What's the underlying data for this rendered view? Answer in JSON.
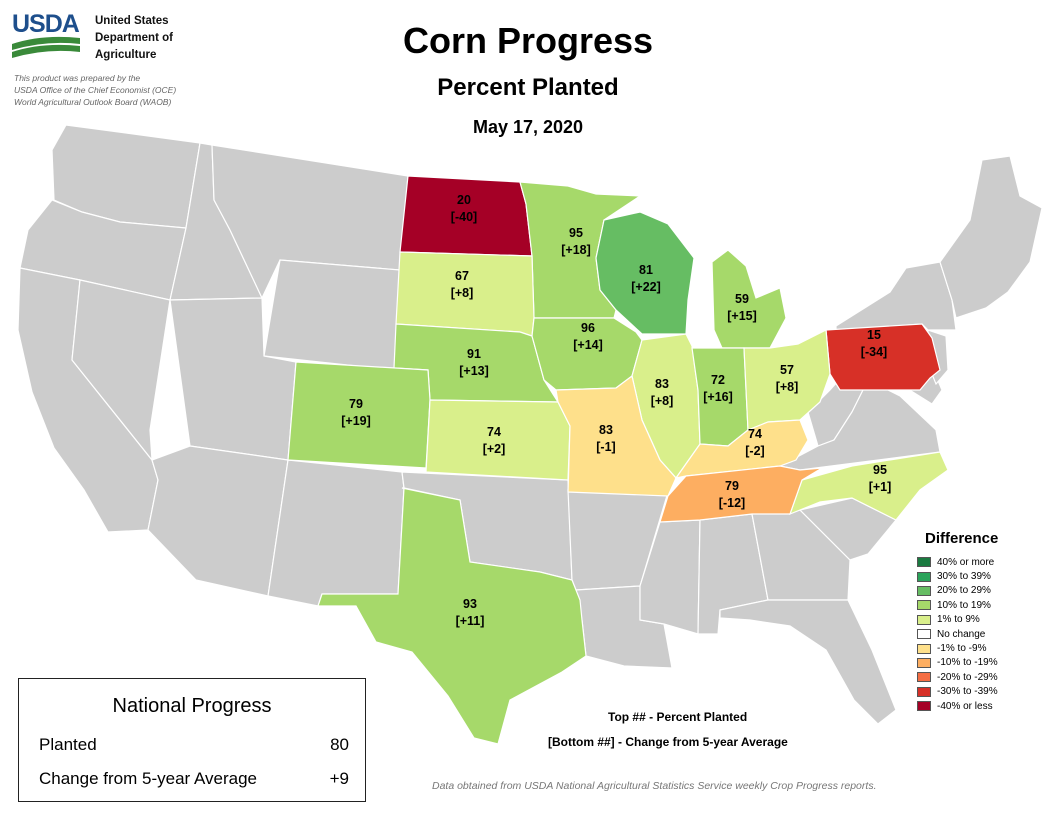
{
  "header": {
    "logo_text": "USDA",
    "agency_lines": [
      "United States",
      "Department of",
      "Agriculture"
    ],
    "prepared_lines": [
      "This product was prepared by the",
      "USDA Office of the Chief Economist (OCE)",
      "World Agricultural Outlook Board (WAOB)"
    ],
    "title": "Corn Progress",
    "subtitle": "Percent Planted",
    "date": "May 17, 2020"
  },
  "colors": {
    "brand_blue": "#1e4f8c",
    "brand_green": "#3a8a3a",
    "no_data_state": "#cccccc",
    "border": "#ffffff"
  },
  "states": [
    {
      "name": "ND",
      "planted": "20",
      "diff": "[-40]",
      "color": "#a50026"
    },
    {
      "name": "MN",
      "planted": "95",
      "diff": "[+18]",
      "color": "#a6d96a"
    },
    {
      "name": "WI",
      "planted": "81",
      "diff": "[+22]",
      "color": "#66bd63"
    },
    {
      "name": "SD",
      "planted": "67",
      "diff": "[+8]",
      "color": "#d9ef8b"
    },
    {
      "name": "MI",
      "planted": "59",
      "diff": "[+15]",
      "color": "#a6d96a"
    },
    {
      "name": "PA",
      "planted": "15",
      "diff": "[-34]",
      "color": "#d73027"
    },
    {
      "name": "NE",
      "planted": "91",
      "diff": "[+13]",
      "color": "#a6d96a"
    },
    {
      "name": "IA",
      "planted": "96",
      "diff": "[+14]",
      "color": "#a6d96a"
    },
    {
      "name": "IL",
      "planted": "83",
      "diff": "[+8]",
      "color": "#d9ef8b"
    },
    {
      "name": "IN",
      "planted": "72",
      "diff": "[+16]",
      "color": "#a6d96a"
    },
    {
      "name": "OH",
      "planted": "57",
      "diff": "[+8]",
      "color": "#d9ef8b"
    },
    {
      "name": "CO",
      "planted": "79",
      "diff": "[+19]",
      "color": "#a6d96a"
    },
    {
      "name": "KS",
      "planted": "74",
      "diff": "[+2]",
      "color": "#d9ef8b"
    },
    {
      "name": "MO",
      "planted": "83",
      "diff": "[-1]",
      "color": "#fee08b"
    },
    {
      "name": "KY",
      "planted": "74",
      "diff": "[-2]",
      "color": "#fee08b"
    },
    {
      "name": "NC",
      "planted": "95",
      "diff": "[+1]",
      "color": "#d9ef8b"
    },
    {
      "name": "TN",
      "planted": "79",
      "diff": "[-12]",
      "color": "#fdae61"
    },
    {
      "name": "TX",
      "planted": "93",
      "diff": "[+11]",
      "color": "#a6d96a"
    }
  ],
  "legend": {
    "title": "Difference",
    "items": [
      {
        "label": "40% or more",
        "color": "#1a7a40"
      },
      {
        "label": "30% to 39%",
        "color": "#2aa35a"
      },
      {
        "label": "20% to 29%",
        "color": "#66bd63"
      },
      {
        "label": "10% to 19%",
        "color": "#a6d96a"
      },
      {
        "label": "1% to 9%",
        "color": "#d9ef8b"
      },
      {
        "label": "No change",
        "color": "#ffffff"
      },
      {
        "label": "-1% to -9%",
        "color": "#fee08b"
      },
      {
        "label": "-10% to -19%",
        "color": "#fdae61"
      },
      {
        "label": "-20% to -29%",
        "color": "#f46d43"
      },
      {
        "label": "-30% to -39%",
        "color": "#d73027"
      },
      {
        "label": "-40% or less",
        "color": "#a50026"
      }
    ]
  },
  "notes": {
    "top": "Top ## - Percent Planted",
    "bottom": "[Bottom ##] - Change from 5-year Average",
    "source": "Data obtained from USDA National Agricultural Statistics Service weekly Crop Progress reports."
  },
  "national": {
    "title": "National Progress",
    "planted_label": "Planted",
    "planted_value": "80",
    "change_label": "Change from 5-year Average",
    "change_value": "+9"
  }
}
